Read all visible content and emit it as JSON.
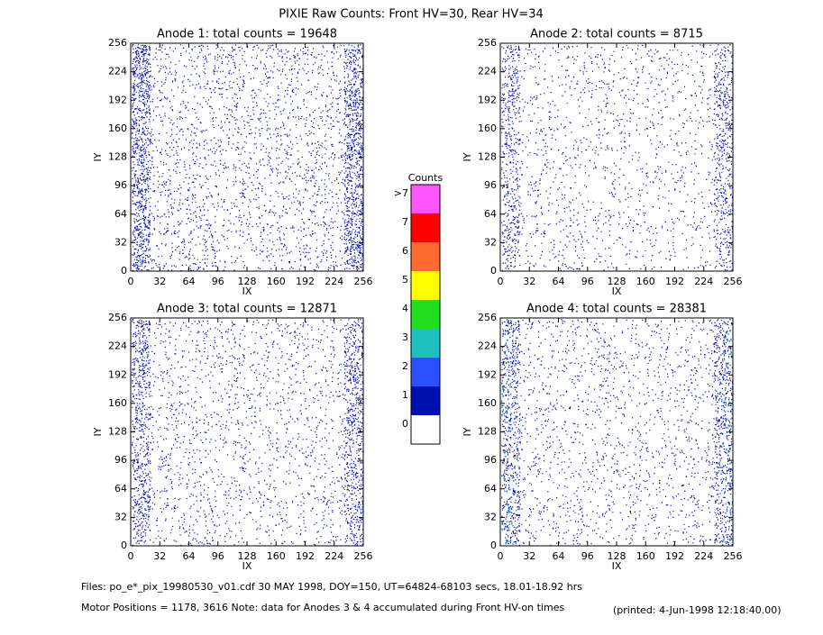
{
  "title": "PIXIE Raw Counts:  Front HV=30, Rear HV=34",
  "chart_data": [
    {
      "type": "heatmap",
      "title": "Anode 1: total counts = 19648",
      "xlabel": "IX",
      "ylabel": "IY",
      "xlim": [
        0,
        256
      ],
      "ylim": [
        0,
        256
      ],
      "xticks": [
        0,
        32,
        64,
        96,
        128,
        160,
        192,
        224,
        256
      ],
      "yticks": [
        0,
        32,
        64,
        96,
        128,
        160,
        192,
        224,
        256
      ]
    },
    {
      "type": "heatmap",
      "title": "Anode 2: total counts = 8715",
      "xlabel": "IX",
      "ylabel": "IY",
      "xlim": [
        0,
        256
      ],
      "ylim": [
        0,
        256
      ],
      "xticks": [
        0,
        32,
        64,
        96,
        128,
        160,
        192,
        224,
        256
      ],
      "yticks": [
        0,
        32,
        64,
        96,
        128,
        160,
        192,
        224,
        256
      ]
    },
    {
      "type": "heatmap",
      "title": "Anode 3: total counts = 12871",
      "xlabel": "IX",
      "ylabel": "IY",
      "xlim": [
        0,
        256
      ],
      "ylim": [
        0,
        256
      ],
      "xticks": [
        0,
        32,
        64,
        96,
        128,
        160,
        192,
        224,
        256
      ],
      "yticks": [
        0,
        32,
        64,
        96,
        128,
        160,
        192,
        224,
        256
      ]
    },
    {
      "type": "heatmap",
      "title": "Anode 4: total counts = 28381",
      "xlabel": "IX",
      "ylabel": "IY",
      "xlim": [
        0,
        256
      ],
      "ylim": [
        0,
        256
      ],
      "xticks": [
        0,
        32,
        64,
        96,
        128,
        160,
        192,
        224,
        256
      ],
      "yticks": [
        0,
        32,
        64,
        96,
        128,
        160,
        192,
        224,
        256
      ]
    }
  ],
  "colorbar": {
    "title": "Counts",
    "labels": [
      "0",
      "1",
      "2",
      "3",
      "4",
      "5",
      "6",
      "7",
      ">7"
    ],
    "colors": [
      "#ffffff",
      "#0010b0",
      "#2a50ff",
      "#20c0c0",
      "#20dd20",
      "#ffff00",
      "#ff6a30",
      "#ff0000",
      "#ff55ff"
    ]
  },
  "footer": {
    "files": "Files: po_e*_pix_19980530_v01.cdf    30 MAY 1998, DOY=150, UT=64824-68103 secs, 18.01-18.92 hrs",
    "motor": "Motor Positions = 1178, 3616   Note: data for Anodes 3 & 4 accumulated during Front HV-on times",
    "printed": "(printed:  4-Jun-1998 12:18:40.00)"
  }
}
